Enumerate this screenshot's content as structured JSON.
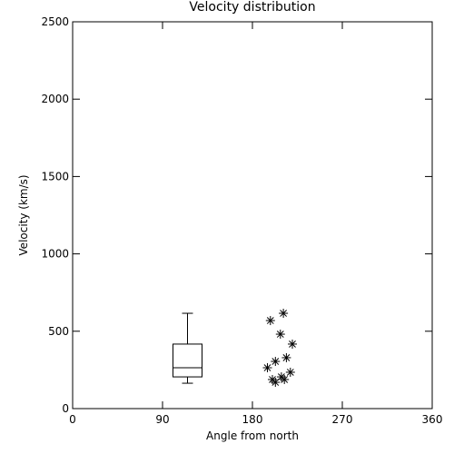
{
  "chart_data": {
    "type": "scatter",
    "title": "Velocity distribution",
    "xlabel": "Angle from north",
    "ylabel": "Velocity (km/s)",
    "xlim": [
      0,
      360
    ],
    "ylim": [
      0,
      2500
    ],
    "xticks": [
      0,
      90,
      180,
      270,
      360
    ],
    "yticks": [
      0,
      500,
      1000,
      1500,
      2000,
      2500
    ],
    "color": "#000000",
    "x": [
      198,
      211,
      208,
      220,
      203,
      195,
      214,
      218,
      212,
      203,
      200,
      209
    ],
    "values": [
      569,
      616,
      481,
      417,
      305,
      264,
      329,
      235,
      188,
      170,
      188,
      205
    ],
    "box": {
      "x": 115,
      "min": 164,
      "q1": 205,
      "median": 264,
      "q3": 417,
      "max": 616
    }
  }
}
